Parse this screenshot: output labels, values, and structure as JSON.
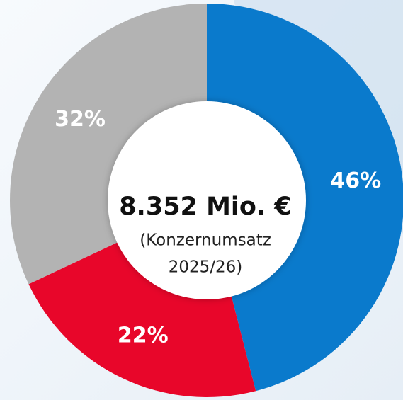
{
  "chart_data": {
    "type": "pie",
    "values": [
      46,
      22,
      32
    ],
    "value_labels": [
      "46%",
      "22%",
      "32%"
    ],
    "colors": [
      "#0a7acc",
      "#e8062a",
      "#b3b3b3"
    ],
    "title": "8.352 Mio. €",
    "annotations": [
      "(Konzernumsatz",
      "2025/26)"
    ]
  }
}
